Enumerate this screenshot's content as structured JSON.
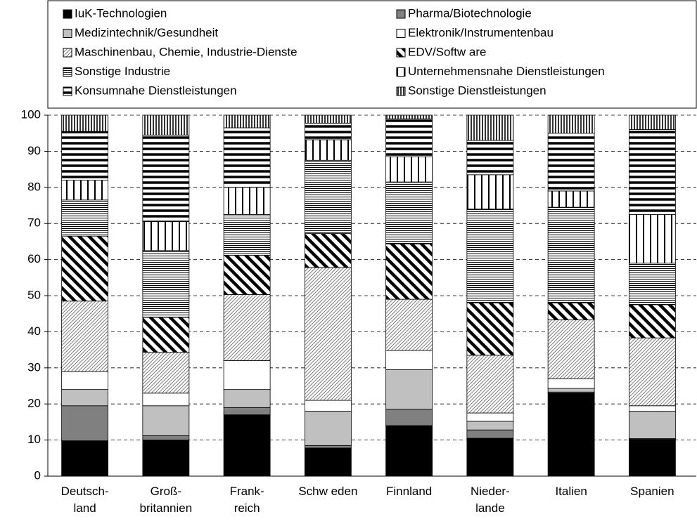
{
  "chart_data": {
    "type": "stacked-bar",
    "categories": [
      "Deutsch-\nland",
      "Groß-\nbritannien",
      "Frank-\nreich",
      "Schw eden",
      "Finnland",
      "Nieder-\nlande",
      "Italien",
      "Spanien"
    ],
    "ylim": [
      0,
      100
    ],
    "yticks": [
      0,
      10,
      20,
      30,
      40,
      50,
      60,
      70,
      80,
      90,
      100
    ],
    "grid": true,
    "series": [
      {
        "name": "IuK-Technologien",
        "color": "#000000",
        "pattern": "solid",
        "values": [
          9.8,
          10,
          17,
          7.8,
          14,
          10.5,
          23,
          10.2
        ]
      },
      {
        "name": "Pharma/Biotechnologie",
        "color": "#808080",
        "pattern": "solid",
        "values": [
          9.7,
          1.2,
          2,
          0.7,
          4.5,
          2.3,
          0.3,
          0.2
        ]
      },
      {
        "name": "Medizintechnik/Gesundheit",
        "color": "#c0c0c0",
        "pattern": "solid",
        "values": [
          4.5,
          8.3,
          5,
          9.5,
          11,
          2.4,
          1,
          7.6
        ]
      },
      {
        "name": "Elektronik/Instrumentenbau",
        "color": "#ffffff",
        "pattern": "solid",
        "values": [
          5,
          3.5,
          8,
          3,
          5.3,
          2.3,
          2.7,
          1.5
        ]
      },
      {
        "name": "Maschinenbau, Chemie, Industrie-Dienste",
        "color": "#808080",
        "pattern": "hatch-fine",
        "values": [
          19.5,
          11.3,
          18.3,
          36.8,
          14.2,
          16,
          16.3,
          18.8
        ]
      },
      {
        "name": "EDV/Softw are",
        "color": "#000000",
        "pattern": "stripe-diag",
        "values": [
          18,
          9.7,
          10.9,
          9.4,
          15.3,
          14.5,
          4.7,
          9.2
        ]
      },
      {
        "name": "Sonstige Industrie",
        "color": "#000000",
        "pattern": "lines-h-fine",
        "values": [
          10,
          18.5,
          11.3,
          20.3,
          17.2,
          26,
          26.5,
          11.5
        ]
      },
      {
        "name": "Unternehmensnahe Dienstleistungen",
        "color": "#000000",
        "pattern": "lines-v",
        "values": [
          5.5,
          8,
          7.5,
          5.7,
          7,
          9.5,
          4.5,
          13.5
        ]
      },
      {
        "name": "Konsumnahe Dienstleistungen",
        "color": "#000000",
        "pattern": "stripes-h",
        "values": [
          13.5,
          24,
          16.5,
          4.6,
          10.5,
          9.5,
          16,
          23.5
        ]
      },
      {
        "name": "Sonstige Dienstleistungen",
        "color": "#000000",
        "pattern": "lines-v-fine",
        "values": [
          4.5,
          5.5,
          3.5,
          2.2,
          1,
          7,
          5,
          4
        ]
      }
    ]
  }
}
